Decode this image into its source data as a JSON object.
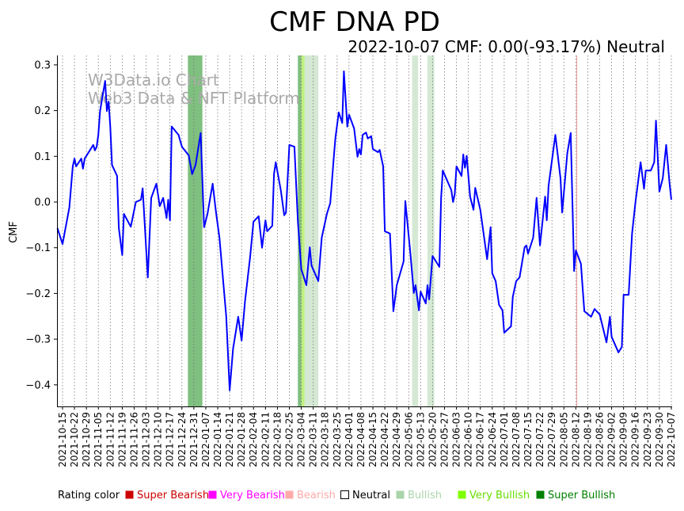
{
  "chart_data": {
    "type": "line",
    "title": "CMF DNA PD",
    "subtitle": "2022-10-07 CMF: 0.00(-93.17%) Neutral",
    "watermark": [
      "W3Data.io Chart",
      "Web3 Data & NFT Platform"
    ],
    "xlabel": "",
    "ylabel": "CMF",
    "x_start_date": "2021-10-15",
    "x_unit": "days since 2021-10-15",
    "xlim": [
      -3,
      357
    ],
    "ylim": [
      -0.45,
      0.32
    ],
    "yticks": [
      0.3,
      0.2,
      0.1,
      0.0,
      -0.1,
      -0.2,
      -0.3,
      -0.4
    ],
    "ytick_labels": [
      "0.3",
      "0.2",
      "0.1",
      "0.0",
      "−0.1",
      "−0.2",
      "−0.3",
      "−0.4"
    ],
    "xtick_labels": [
      "2021-10-15",
      "2021-10-22",
      "2021-10-29",
      "2021-11-05",
      "2021-11-12",
      "2021-11-19",
      "2021-11-26",
      "2021-12-03",
      "2021-12-10",
      "2021-12-17",
      "2021-12-24",
      "2021-12-31",
      "2022-01-07",
      "2022-01-14",
      "2022-01-21",
      "2022-01-28",
      "2022-02-04",
      "2022-02-11",
      "2022-02-18",
      "2022-02-25",
      "2022-03-04",
      "2022-03-11",
      "2022-03-18",
      "2022-03-25",
      "2022-04-01",
      "2022-04-08",
      "2022-04-15",
      "2022-04-22",
      "2022-04-29",
      "2022-05-06",
      "2022-05-13",
      "2022-05-20",
      "2022-05-27",
      "2022-06-03",
      "2022-06-10",
      "2022-06-17",
      "2022-06-24",
      "2022-07-01",
      "2022-07-08",
      "2022-07-15",
      "2022-07-22",
      "2022-07-29",
      "2022-08-05",
      "2022-08-12",
      "2022-08-19",
      "2022-08-26",
      "2022-09-02",
      "2022-09-09",
      "2022-09-16",
      "2022-09-23",
      "2022-09-30",
      "2022-10-07"
    ],
    "xtick_step_days": 7,
    "grid": "vertical dotted",
    "series": [
      {
        "name": "CMF",
        "color": "#0000ff",
        "points": [
          [
            -3,
            -0.057
          ],
          [
            0,
            -0.092
          ],
          [
            4,
            -0.012
          ],
          [
            6,
            0.078
          ],
          [
            7,
            0.095
          ],
          [
            8,
            0.078
          ],
          [
            11,
            0.095
          ],
          [
            12,
            0.073
          ],
          [
            13,
            0.095
          ],
          [
            18,
            0.125
          ],
          [
            19,
            0.113
          ],
          [
            20,
            0.121
          ],
          [
            21,
            0.147
          ],
          [
            22,
            0.199
          ],
          [
            25,
            0.265
          ],
          [
            26,
            0.199
          ],
          [
            27,
            0.22
          ],
          [
            28,
            0.165
          ],
          [
            29,
            0.081
          ],
          [
            32,
            0.057
          ],
          [
            33,
            -0.057
          ],
          [
            35,
            -0.116
          ],
          [
            36,
            -0.026
          ],
          [
            40,
            -0.054
          ],
          [
            43,
            0
          ],
          [
            46,
            0.005
          ],
          [
            47,
            0.03
          ],
          [
            50,
            -0.165
          ],
          [
            52,
            0.009
          ],
          [
            55,
            0.04
          ],
          [
            57,
            -0.009
          ],
          [
            59,
            0.009
          ],
          [
            61,
            -0.035
          ],
          [
            62,
            0.005
          ],
          [
            63,
            -0.04
          ],
          [
            64,
            0.165
          ],
          [
            68,
            0.147
          ],
          [
            70,
            0.121
          ],
          [
            74,
            0.102
          ],
          [
            76,
            0.061
          ],
          [
            78,
            0.081
          ],
          [
            81,
            0.151
          ],
          [
            83,
            -0.055
          ],
          [
            85,
            -0.026
          ],
          [
            88,
            0.04
          ],
          [
            90,
            -0.023
          ],
          [
            92,
            -0.078
          ],
          [
            96,
            -0.251
          ],
          [
            98,
            -0.412
          ],
          [
            100,
            -0.321
          ],
          [
            103,
            -0.251
          ],
          [
            105,
            -0.303
          ],
          [
            107,
            -0.217
          ],
          [
            110,
            -0.121
          ],
          [
            112,
            -0.043
          ],
          [
            115,
            -0.031
          ],
          [
            117,
            -0.1
          ],
          [
            119,
            -0.04
          ],
          [
            120,
            -0.064
          ],
          [
            123,
            -0.052
          ],
          [
            124,
            0.061
          ],
          [
            125,
            0.087
          ],
          [
            128,
            0.026
          ],
          [
            130,
            -0.029
          ],
          [
            131,
            -0.023
          ],
          [
            133,
            0.125
          ],
          [
            136,
            0.121
          ],
          [
            138,
            -0.043
          ],
          [
            140,
            -0.147
          ],
          [
            143,
            -0.182
          ],
          [
            145,
            -0.099
          ],
          [
            146,
            -0.139
          ],
          [
            150,
            -0.173
          ],
          [
            152,
            -0.078
          ],
          [
            155,
            -0.026
          ],
          [
            157,
            -0.002
          ],
          [
            159,
            0.095
          ],
          [
            160,
            0.139
          ],
          [
            162,
            0.196
          ],
          [
            164,
            0.173
          ],
          [
            165,
            0.286
          ],
          [
            167,
            0.165
          ],
          [
            168,
            0.191
          ],
          [
            171,
            0.161
          ],
          [
            173,
            0.099
          ],
          [
            174,
            0.116
          ],
          [
            175,
            0.104
          ],
          [
            176,
            0.147
          ],
          [
            178,
            0.152
          ],
          [
            179,
            0.139
          ],
          [
            181,
            0.144
          ],
          [
            182,
            0.116
          ],
          [
            185,
            0.109
          ],
          [
            186,
            0.114
          ],
          [
            188,
            0.078
          ],
          [
            189,
            -0.064
          ],
          [
            192,
            -0.069
          ],
          [
            194,
            -0.239
          ],
          [
            196,
            -0.182
          ],
          [
            200,
            -0.13
          ],
          [
            201,
            0.002
          ],
          [
            204,
            -0.113
          ],
          [
            206,
            -0.199
          ],
          [
            207,
            -0.182
          ],
          [
            209,
            -0.237
          ],
          [
            210,
            -0.196
          ],
          [
            213,
            -0.222
          ],
          [
            214,
            -0.182
          ],
          [
            215,
            -0.213
          ],
          [
            217,
            -0.118
          ],
          [
            221,
            -0.142
          ],
          [
            222,
            0.009
          ],
          [
            223,
            0.069
          ],
          [
            228,
            0.026
          ],
          [
            229,
            0
          ],
          [
            230,
            0.017
          ],
          [
            231,
            0.078
          ],
          [
            234,
            0.057
          ],
          [
            235,
            0.104
          ],
          [
            236,
            0.075
          ],
          [
            237,
            0.101
          ],
          [
            239,
            0.012
          ],
          [
            241,
            -0.017
          ],
          [
            242,
            0.031
          ],
          [
            245,
            -0.017
          ],
          [
            249,
            -0.125
          ],
          [
            251,
            -0.055
          ],
          [
            252,
            -0.156
          ],
          [
            254,
            -0.173
          ],
          [
            256,
            -0.225
          ],
          [
            258,
            -0.237
          ],
          [
            259,
            -0.286
          ],
          [
            263,
            -0.272
          ],
          [
            264,
            -0.208
          ],
          [
            266,
            -0.173
          ],
          [
            268,
            -0.165
          ],
          [
            271,
            -0.099
          ],
          [
            272,
            -0.095
          ],
          [
            273,
            -0.113
          ],
          [
            276,
            -0.078
          ],
          [
            278,
            0.009
          ],
          [
            280,
            -0.095
          ],
          [
            283,
            0.012
          ],
          [
            284,
            -0.04
          ],
          [
            285,
            0.035
          ],
          [
            289,
            0.147
          ],
          [
            292,
            0.052
          ],
          [
            293,
            -0.023
          ],
          [
            296,
            0.107
          ],
          [
            298,
            0.151
          ],
          [
            300,
            -0.151
          ],
          [
            301,
            -0.106
          ],
          [
            304,
            -0.135
          ],
          [
            306,
            -0.239
          ],
          [
            310,
            -0.251
          ],
          [
            312,
            -0.234
          ],
          [
            315,
            -0.246
          ],
          [
            319,
            -0.307
          ],
          [
            321,
            -0.251
          ],
          [
            322,
            -0.295
          ],
          [
            326,
            -0.329
          ],
          [
            328,
            -0.317
          ],
          [
            329,
            -0.203
          ],
          [
            332,
            -0.203
          ],
          [
            334,
            -0.069
          ],
          [
            336,
            0
          ],
          [
            339,
            0.087
          ],
          [
            341,
            0.029
          ],
          [
            342,
            0.069
          ],
          [
            345,
            0.069
          ],
          [
            347,
            0.087
          ],
          [
            348,
            0.178
          ],
          [
            350,
            0.023
          ],
          [
            352,
            0.052
          ],
          [
            354,
            0.125
          ],
          [
            356,
            0.04
          ],
          [
            357,
            0.005
          ]
        ]
      }
    ],
    "rating_bands": [
      {
        "rating": "super_bullish",
        "from": 73.5,
        "to": 82
      },
      {
        "rating": "super_bullish",
        "from": 138,
        "to": 140
      },
      {
        "rating": "very_bullish",
        "from": 140,
        "to": 142
      },
      {
        "rating": "bullish",
        "from": 142,
        "to": 150
      },
      {
        "rating": "bullish",
        "from": 205,
        "to": 208.5
      },
      {
        "rating": "bullish",
        "from": 214,
        "to": 218
      },
      {
        "rating": "bearish",
        "from": 301.3,
        "to": 301.8
      }
    ],
    "legend": {
      "title": "Rating color",
      "placement": "bottom",
      "items": [
        {
          "key": "super_bearish",
          "label": "Super Bearish",
          "color": "#cc0000",
          "text_color": "#cc0000"
        },
        {
          "key": "very_bearish",
          "label": "Very Bearish",
          "color": "#ff00ff",
          "text_color": "#ff00ff"
        },
        {
          "key": "bearish",
          "label": "Bearish",
          "color": "#ffaaaa",
          "text_color": "#ffaaaa"
        },
        {
          "key": "neutral",
          "label": "Neutral",
          "color": "#ffffff",
          "text_color": "#000000"
        },
        {
          "key": "bullish",
          "label": "Bullish",
          "color": "#aad4aa",
          "text_color": "#aad4aa"
        },
        {
          "key": "very_bullish",
          "label": "Very Bullish",
          "color": "#80ff00",
          "text_color": "#66dd00"
        },
        {
          "key": "super_bullish",
          "label": "Super Bullish",
          "color": "#008000",
          "text_color": "#008000"
        }
      ]
    },
    "band_colors": {
      "super_bullish": "#7fbf7f",
      "very_bullish": "#c0f080",
      "bullish": "#d4e8d4",
      "bearish": "#f0a0a0"
    }
  }
}
